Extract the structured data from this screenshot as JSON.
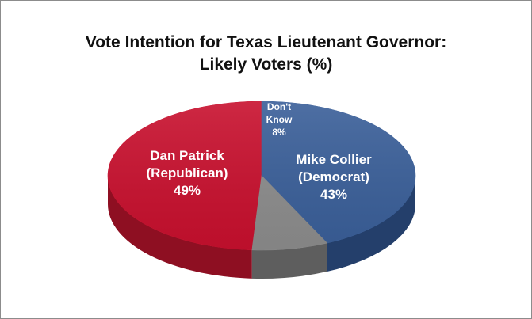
{
  "chart_data": {
    "type": "pie",
    "title": "Vote Intention for Texas Lieutenant Governor: Likely Voters (%)",
    "title_lines": [
      "Vote Intention for Texas Lieutenant Governor:",
      "Likely Voters (%)"
    ],
    "slices": [
      {
        "label_lines": [
          "Dan Patrick",
          "(Republican)",
          "49%"
        ],
        "name": "Dan Patrick (Republican)",
        "value": 49,
        "color": "#c8102e",
        "side_color": "#8e0f22"
      },
      {
        "label_lines": [
          "Mike Collier",
          "(Democrat)",
          "43%"
        ],
        "name": "Mike Collier (Democrat)",
        "value": 43,
        "color": "#3a5f99",
        "side_color": "#243f6b"
      },
      {
        "label_lines": [
          "Don't",
          "Know",
          "8%"
        ],
        "name": "Don't Know",
        "value": 8,
        "color": "#8c8c8c",
        "side_color": "#5e5e5e"
      }
    ],
    "style": "3d-pie"
  }
}
